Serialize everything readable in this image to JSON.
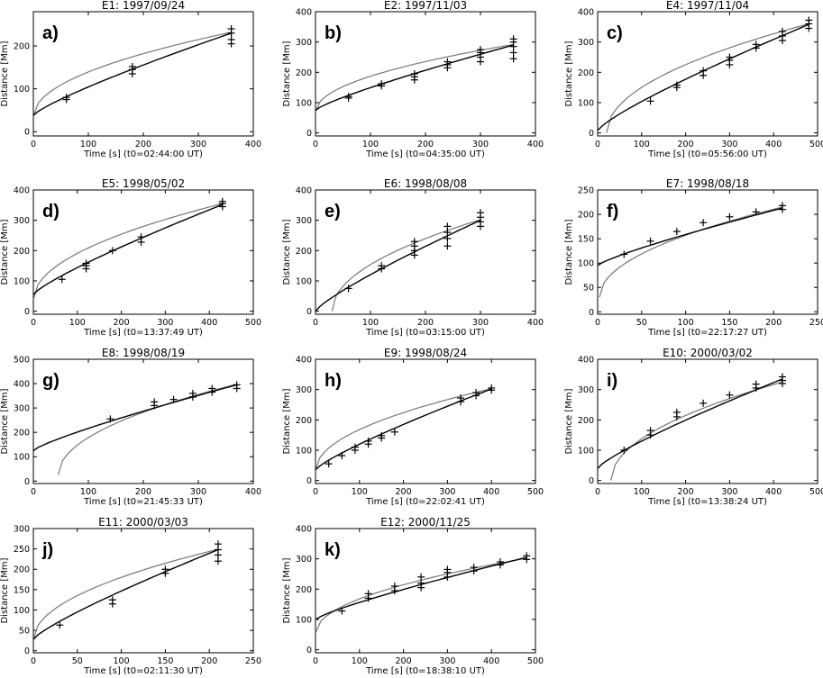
{
  "chart_data": [
    {
      "type": "scatter",
      "panel_label": "a)",
      "title": "E1: 1997/09/24",
      "xlabel": "Time [s] (t0=02:44:00 UT)",
      "ylabel": "Distance [Mm]",
      "xlim": [
        0,
        400
      ],
      "ylim": [
        -10,
        280
      ],
      "xticks": [
        0,
        100,
        200,
        300,
        400
      ],
      "yticks": [
        0,
        100,
        200
      ],
      "points": [
        [
          60,
          75
        ],
        [
          60,
          80
        ],
        [
          180,
          135
        ],
        [
          180,
          145
        ],
        [
          180,
          152
        ],
        [
          360,
          205
        ],
        [
          360,
          215
        ],
        [
          360,
          230
        ],
        [
          360,
          240
        ]
      ],
      "fit_black": {
        "x": [
          0,
          360
        ],
        "y": [
          38,
          230
        ]
      },
      "fit_gray": {
        "x": [
          0,
          360
        ],
        "y": [
          36,
          232
        ]
      }
    },
    {
      "type": "scatter",
      "panel_label": "b)",
      "title": "E2: 1997/11/03",
      "xlabel": "Time [s] (t0=04:35:00 UT)",
      "ylabel": "Distance [Mm]",
      "xlim": [
        0,
        400
      ],
      "ylim": [
        -10,
        400
      ],
      "xticks": [
        0,
        100,
        200,
        300,
        400
      ],
      "yticks": [
        0,
        100,
        200,
        300,
        400
      ],
      "points": [
        [
          60,
          115
        ],
        [
          60,
          120
        ],
        [
          120,
          155
        ],
        [
          120,
          162
        ],
        [
          180,
          175
        ],
        [
          180,
          185
        ],
        [
          180,
          195
        ],
        [
          240,
          215
        ],
        [
          240,
          225
        ],
        [
          240,
          235
        ],
        [
          300,
          235
        ],
        [
          300,
          250
        ],
        [
          300,
          265
        ],
        [
          300,
          275
        ],
        [
          360,
          245
        ],
        [
          360,
          265
        ],
        [
          360,
          285
        ],
        [
          360,
          300
        ],
        [
          360,
          310
        ]
      ],
      "fit_black": {
        "x": [
          0,
          360
        ],
        "y": [
          75,
          290
        ]
      },
      "fit_gray": {
        "x": [
          0,
          360
        ],
        "y": [
          70,
          292
        ]
      }
    },
    {
      "type": "scatter",
      "panel_label": "c)",
      "title": "E4: 1997/11/04",
      "xlabel": "Time [s] (t0=05:56:00 UT)",
      "ylabel": "Distance [Mm]",
      "xlim": [
        0,
        500
      ],
      "ylim": [
        -10,
        400
      ],
      "xticks": [
        0,
        100,
        200,
        300,
        400,
        500
      ],
      "yticks": [
        0,
        100,
        200,
        300,
        400
      ],
      "points": [
        [
          120,
          105
        ],
        [
          180,
          150
        ],
        [
          180,
          158
        ],
        [
          240,
          190
        ],
        [
          240,
          205
        ],
        [
          300,
          225
        ],
        [
          300,
          240
        ],
        [
          300,
          250
        ],
        [
          360,
          280
        ],
        [
          360,
          292
        ],
        [
          420,
          305
        ],
        [
          420,
          320
        ],
        [
          420,
          335
        ],
        [
          480,
          345
        ],
        [
          480,
          360
        ],
        [
          480,
          372
        ]
      ],
      "fit_black": {
        "x": [
          0,
          480
        ],
        "y": [
          8,
          358
        ]
      },
      "fit_gray": {
        "x": [
          20,
          480
        ],
        "y": [
          0,
          360
        ]
      }
    },
    {
      "type": "scatter",
      "panel_label": "d)",
      "title": "E5: 1998/05/02",
      "xlabel": "Time [s] (t0=13:37:49 UT)",
      "ylabel": "Distance [Mm]",
      "xlim": [
        0,
        500
      ],
      "ylim": [
        -10,
        400
      ],
      "xticks": [
        0,
        100,
        200,
        300,
        400,
        500
      ],
      "yticks": [
        0,
        100,
        200,
        300,
        400
      ],
      "points": [
        [
          65,
          105
        ],
        [
          120,
          140
        ],
        [
          120,
          150
        ],
        [
          120,
          158
        ],
        [
          180,
          200
        ],
        [
          245,
          228
        ],
        [
          245,
          245
        ],
        [
          430,
          345
        ],
        [
          430,
          355
        ],
        [
          430,
          362
        ]
      ],
      "fit_black": {
        "x": [
          0,
          430
        ],
        "y": [
          55,
          352
        ]
      },
      "fit_gray": {
        "x": [
          0,
          430
        ],
        "y": [
          38,
          355
        ]
      }
    },
    {
      "type": "scatter",
      "panel_label": "e)",
      "title": "E6: 1998/08/08",
      "xlabel": "Time [s] (t0=03:15:00 UT)",
      "ylabel": "Distance [Mm]",
      "xlim": [
        0,
        400
      ],
      "ylim": [
        -10,
        400
      ],
      "xticks": [
        0,
        100,
        200,
        300,
        400
      ],
      "yticks": [
        0,
        100,
        200,
        300,
        400
      ],
      "points": [
        [
          60,
          75
        ],
        [
          120,
          140
        ],
        [
          120,
          150
        ],
        [
          180,
          185
        ],
        [
          180,
          200
        ],
        [
          180,
          215
        ],
        [
          180,
          230
        ],
        [
          240,
          215
        ],
        [
          240,
          240
        ],
        [
          240,
          260
        ],
        [
          240,
          280
        ],
        [
          300,
          280
        ],
        [
          300,
          295
        ],
        [
          300,
          310
        ],
        [
          300,
          325
        ]
      ],
      "fit_black": {
        "x": [
          0,
          300
        ],
        "y": [
          0,
          300
        ]
      },
      "fit_gray": {
        "x": [
          30,
          300
        ],
        "y": [
          0,
          302
        ]
      }
    },
    {
      "type": "scatter",
      "panel_label": "f)",
      "title": "E7: 1998/08/18",
      "xlabel": "Time [s] (t0=22:17:27 UT)",
      "ylabel": "Distance [Mm]",
      "xlim": [
        0,
        250
      ],
      "ylim": [
        -5,
        250
      ],
      "xticks": [
        0,
        50,
        100,
        150,
        200,
        250
      ],
      "yticks": [
        0,
        50,
        100,
        150,
        200,
        250
      ],
      "points": [
        [
          30,
          118
        ],
        [
          60,
          145
        ],
        [
          90,
          165
        ],
        [
          120,
          183
        ],
        [
          150,
          195
        ],
        [
          180,
          205
        ],
        [
          210,
          210
        ],
        [
          210,
          218
        ]
      ],
      "fit_black": {
        "x": [
          0,
          210
        ],
        "y": [
          95,
          213
        ]
      },
      "fit_gray": {
        "x": [
          2,
          210
        ],
        "y": [
          30,
          215
        ]
      }
    },
    {
      "type": "scatter",
      "panel_label": "g)",
      "title": "E8: 1998/08/19",
      "xlabel": "Time [s] (t0=21:45:33 UT)",
      "ylabel": "Distance [Mm]",
      "xlim": [
        0,
        400
      ],
      "ylim": [
        -10,
        500
      ],
      "xticks": [
        0,
        100,
        200,
        300,
        400
      ],
      "yticks": [
        0,
        100,
        200,
        300,
        400,
        500
      ],
      "points": [
        [
          140,
          255
        ],
        [
          220,
          310
        ],
        [
          220,
          325
        ],
        [
          255,
          335
        ],
        [
          290,
          345
        ],
        [
          290,
          360
        ],
        [
          325,
          365
        ],
        [
          325,
          380
        ],
        [
          370,
          380
        ],
        [
          370,
          395
        ]
      ],
      "fit_black": {
        "x": [
          0,
          370
        ],
        "y": [
          125,
          395
        ]
      },
      "fit_gray": {
        "x": [
          45,
          370
        ],
        "y": [
          25,
          398
        ]
      }
    },
    {
      "type": "scatter",
      "panel_label": "h)",
      "title": "E9: 1998/08/24",
      "xlabel": "Time [s] (t0=22:02:41 UT)",
      "ylabel": "Distance [Mm]",
      "xlim": [
        0,
        500
      ],
      "ylim": [
        -10,
        400
      ],
      "xticks": [
        0,
        100,
        200,
        300,
        400,
        500
      ],
      "yticks": [
        0,
        100,
        200,
        300,
        400
      ],
      "points": [
        [
          30,
          55
        ],
        [
          60,
          82
        ],
        [
          90,
          100
        ],
        [
          90,
          110
        ],
        [
          120,
          120
        ],
        [
          120,
          130
        ],
        [
          150,
          140
        ],
        [
          150,
          148
        ],
        [
          180,
          160
        ],
        [
          330,
          260
        ],
        [
          330,
          272
        ],
        [
          365,
          280
        ],
        [
          365,
          290
        ],
        [
          400,
          298
        ],
        [
          400,
          305
        ]
      ],
      "fit_black": {
        "x": [
          0,
          400
        ],
        "y": [
          35,
          302
        ]
      },
      "fit_gray": {
        "x": [
          0,
          400
        ],
        "y": [
          33,
          303
        ]
      }
    },
    {
      "type": "scatter",
      "panel_label": "i)",
      "title": "E10: 2000/03/02",
      "xlabel": "Time [s] (t0=13:38:24 UT)",
      "ylabel": "Distance [Mm]",
      "xlim": [
        0,
        500
      ],
      "ylim": [
        -10,
        400
      ],
      "xticks": [
        0,
        100,
        200,
        300,
        400,
        500
      ],
      "yticks": [
        0,
        100,
        200,
        300,
        400
      ],
      "points": [
        [
          60,
          100
        ],
        [
          120,
          150
        ],
        [
          120,
          165
        ],
        [
          180,
          210
        ],
        [
          180,
          225
        ],
        [
          240,
          255
        ],
        [
          300,
          282
        ],
        [
          360,
          305
        ],
        [
          360,
          318
        ],
        [
          420,
          320
        ],
        [
          420,
          330
        ],
        [
          420,
          342
        ]
      ],
      "fit_black": {
        "x": [
          0,
          420
        ],
        "y": [
          40,
          335
        ]
      },
      "fit_gray": {
        "x": [
          30,
          420
        ],
        "y": [
          0,
          325
        ]
      }
    },
    {
      "type": "scatter",
      "panel_label": "j)",
      "title": "E11: 2000/03/03",
      "xlabel": "Time [s] (t0=02:11:30 UT)",
      "ylabel": "Distance [Mm]",
      "xlim": [
        0,
        250
      ],
      "ylim": [
        -5,
        300
      ],
      "xticks": [
        0,
        50,
        100,
        150,
        200,
        250
      ],
      "yticks": [
        0,
        50,
        100,
        150,
        200,
        250,
        300
      ],
      "points": [
        [
          30,
          63
        ],
        [
          90,
          115
        ],
        [
          90,
          125
        ],
        [
          150,
          190
        ],
        [
          150,
          200
        ],
        [
          210,
          220
        ],
        [
          210,
          235
        ],
        [
          210,
          248
        ],
        [
          210,
          262
        ]
      ],
      "fit_black": {
        "x": [
          0,
          210
        ],
        "y": [
          28,
          248
        ]
      },
      "fit_gray": {
        "x": [
          0,
          210
        ],
        "y": [
          27,
          249
        ]
      }
    },
    {
      "type": "scatter",
      "panel_label": "k)",
      "title": "E12: 2000/11/25",
      "xlabel": "Time [s] (t0=18:38:10 UT)",
      "ylabel": "Distance [Mm]",
      "xlim": [
        0,
        500
      ],
      "ylim": [
        -10,
        400
      ],
      "xticks": [
        0,
        100,
        200,
        300,
        400,
        500
      ],
      "yticks": [
        0,
        100,
        200,
        300,
        400
      ],
      "points": [
        [
          60,
          128
        ],
        [
          120,
          170
        ],
        [
          120,
          185
        ],
        [
          180,
          195
        ],
        [
          180,
          210
        ],
        [
          240,
          205
        ],
        [
          240,
          220
        ],
        [
          240,
          240
        ],
        [
          300,
          240
        ],
        [
          300,
          255
        ],
        [
          300,
          265
        ],
        [
          360,
          260
        ],
        [
          360,
          272
        ],
        [
          420,
          280
        ],
        [
          420,
          290
        ],
        [
          480,
          298
        ],
        [
          480,
          310
        ]
      ],
      "fit_black": {
        "x": [
          0,
          480
        ],
        "y": [
          100,
          305
        ]
      },
      "fit_gray": {
        "x": [
          0,
          480
        ],
        "y": [
          55,
          302
        ]
      }
    }
  ]
}
